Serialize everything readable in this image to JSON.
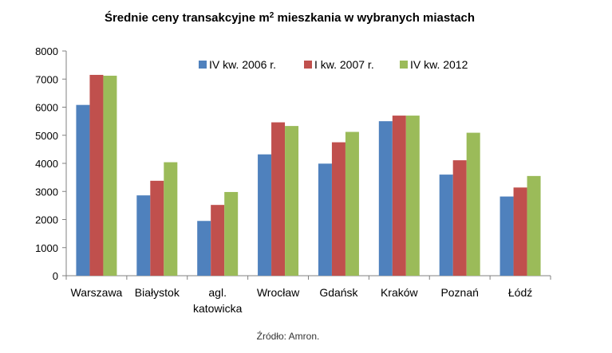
{
  "chart_data": {
    "type": "bar",
    "title": "Średnie ceny transakcyjne m² mieszkania w wybranych miastach",
    "categories": [
      "Warszawa",
      "Białystok",
      "agl. katowicka",
      "Wrocław",
      "Gdańsk",
      "Kraków",
      "Poznań",
      "Łódź"
    ],
    "series": [
      {
        "name": "IV kw. 2006 r.",
        "color": "#4F81BD",
        "values": [
          6080,
          2860,
          1950,
          4320,
          3990,
          5500,
          3600,
          2820
        ]
      },
      {
        "name": "I kw. 2007 r.",
        "color": "#C0504D",
        "values": [
          7150,
          3380,
          2520,
          5460,
          4750,
          5700,
          4110,
          3140
        ]
      },
      {
        "name": "IV kw. 2012",
        "color": "#9BBB59",
        "values": [
          7120,
          4040,
          2980,
          5330,
          5120,
          5700,
          5090,
          3550
        ]
      }
    ],
    "yticks": [
      "0",
      "1000",
      "2000",
      "3000",
      "4000",
      "5000",
      "6000",
      "7000",
      "8000"
    ],
    "ylim": [
      0,
      8000
    ],
    "grid": false,
    "legend_position": "top-right"
  },
  "source_note": "Źródło: Amron."
}
